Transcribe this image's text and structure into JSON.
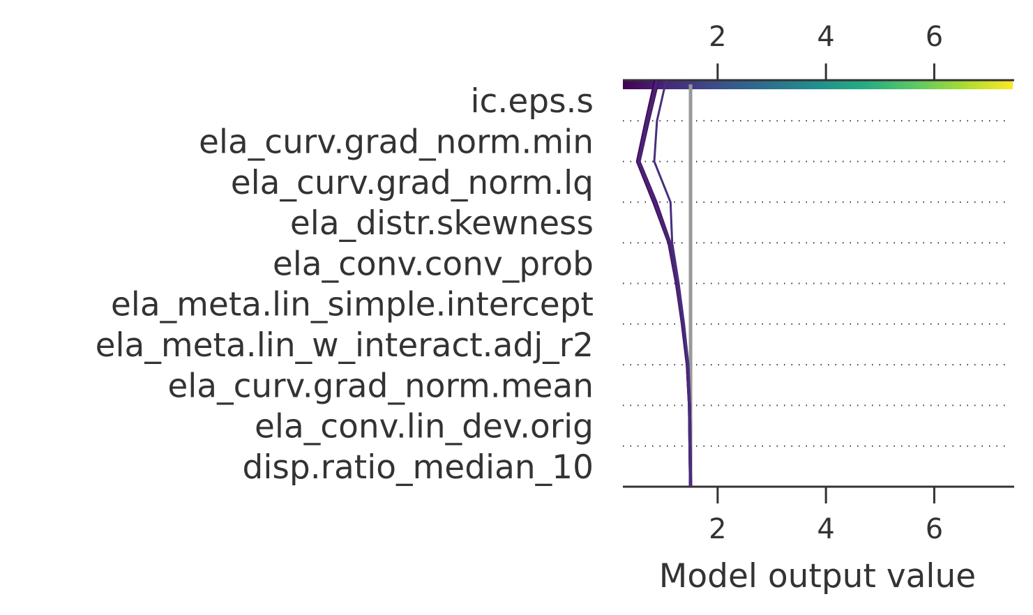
{
  "chart_data": {
    "type": "line",
    "subtype": "shap-decision-plot",
    "xlabel": "Model output value",
    "xlim": [
      0.25,
      7.45
    ],
    "x_ticks": [
      2,
      4,
      6
    ],
    "x_tick_labels": [
      "2",
      "4",
      "6"
    ],
    "base_value": 1.5,
    "features": [
      "disp.ratio_median_10",
      "ela_conv.lin_dev.orig",
      "ela_curv.grad_norm.mean",
      "ela_meta.lin_w_interact.adj_r2",
      "ela_meta.lin_simple.intercept",
      "ela_conv.conv_prob",
      "ela_distr.skewness",
      "ela_curv.grad_norm.lq",
      "ela_curv.grad_norm.min",
      "ic.eps.s"
    ],
    "series": [
      {
        "color": "#440154",
        "values": [
          1.5,
          1.49,
          1.48,
          1.44,
          1.35,
          1.24,
          1.1,
          0.82,
          0.52,
          0.68,
          0.85
        ]
      },
      {
        "color": "#471365",
        "values": [
          1.5,
          1.49,
          1.48,
          1.44,
          1.35,
          1.25,
          1.12,
          0.86,
          0.55,
          0.72,
          0.9
        ]
      },
      {
        "color": "#482475",
        "values": [
          1.5,
          1.49,
          1.48,
          1.45,
          1.36,
          1.25,
          1.11,
          0.84,
          0.54,
          0.7,
          0.88
        ]
      },
      {
        "color": "#472f7d",
        "values": [
          1.5,
          1.49,
          1.48,
          1.46,
          1.38,
          1.28,
          1.16,
          1.13,
          0.83,
          0.88,
          1.05
        ]
      }
    ],
    "colorbar": {
      "colors": [
        "#440154",
        "#472c7a",
        "#3b518b",
        "#2c718e",
        "#21908d",
        "#27ad81",
        "#5cc863",
        "#aadc32",
        "#fde725"
      ]
    },
    "grid": "dotted-horizontal"
  }
}
